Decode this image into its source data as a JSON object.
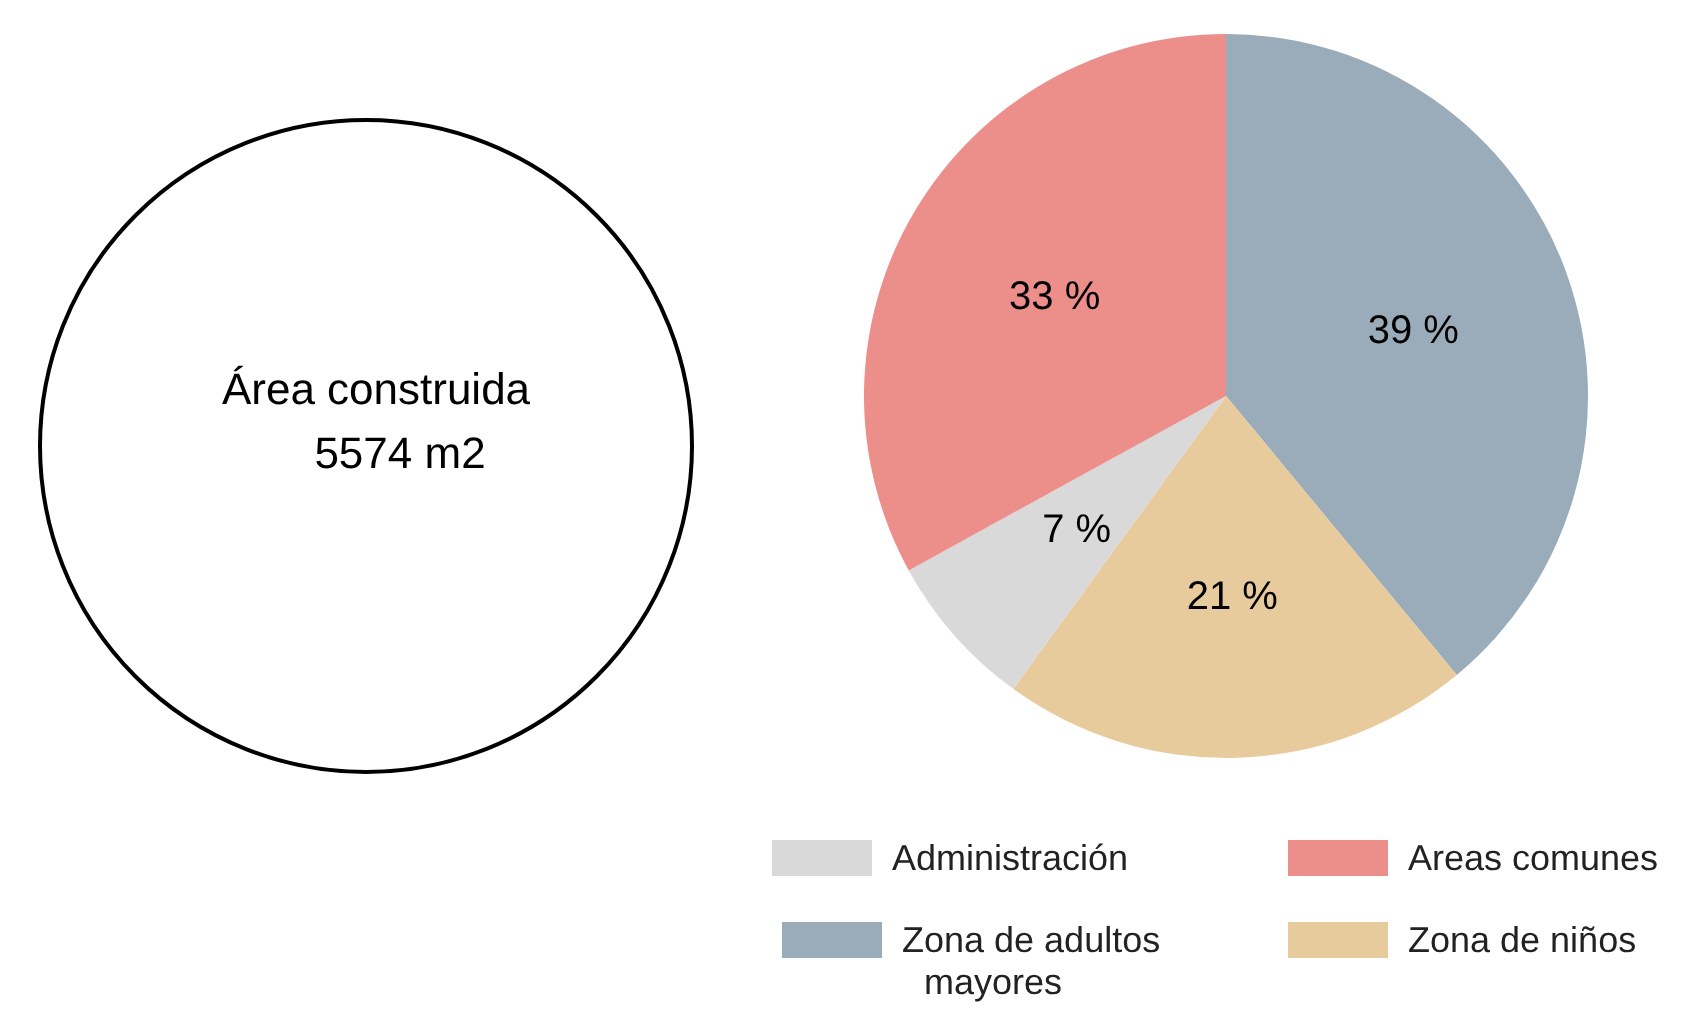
{
  "chart_data": {
    "type": "pie",
    "categories": [
      "Zona de adultos mayores",
      "Zona de niños",
      "Administración",
      "Areas comunes"
    ],
    "values": [
      39,
      21,
      7,
      33
    ],
    "colors": [
      "#9aacb9",
      "#e8cb9c",
      "#d9d9d9",
      "#ec8e8a"
    ],
    "value_labels": [
      "39 %",
      "21 %",
      "7 %",
      "33 %"
    ],
    "legend": "bottom",
    "annotations": [
      "Área construida",
      "5574 m2"
    ]
  }
}
